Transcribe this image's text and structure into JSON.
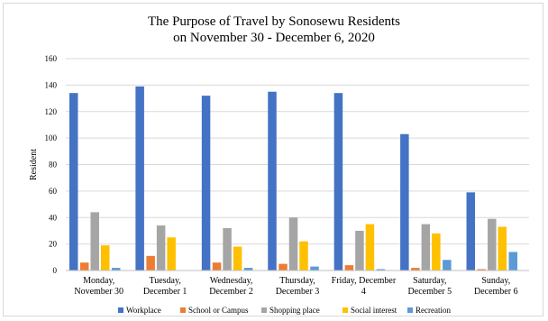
{
  "chart_data": {
    "type": "bar",
    "title": "The Purpose of Travel by Sonosewu Residents",
    "subtitle": "on  November 30 - December 6, 2020",
    "xlabel": "",
    "ylabel": "Resident",
    "ylim": [
      0,
      160
    ],
    "yticks": [
      0,
      20,
      40,
      60,
      80,
      100,
      120,
      140,
      160
    ],
    "grid": true,
    "legend_position": "bottom",
    "categories": [
      [
        "Monday,",
        "November 30"
      ],
      [
        "Tuesday,",
        "December 1"
      ],
      [
        "Wednesday,",
        "December 2"
      ],
      [
        "Thursday,",
        "December 3"
      ],
      [
        "Friday, December",
        "4"
      ],
      [
        "Saturday,",
        "December 5"
      ],
      [
        "Sunday,",
        "December 6"
      ]
    ],
    "series": [
      {
        "name": "Workplace",
        "color": "#4472c4",
        "values": [
          134,
          139,
          132,
          135,
          134,
          103,
          59
        ]
      },
      {
        "name": "School or Campus",
        "color": "#ed7d31",
        "values": [
          6,
          11,
          6,
          5,
          4,
          2,
          1
        ]
      },
      {
        "name": "Shopping place",
        "color": "#a5a5a5",
        "values": [
          44,
          34,
          32,
          40,
          30,
          35,
          39
        ]
      },
      {
        "name": "Social interest",
        "color": "#ffc000",
        "values": [
          19,
          25,
          18,
          22,
          35,
          28,
          33
        ]
      },
      {
        "name": "Recreation",
        "color": "#5b9bd5",
        "values": [
          2,
          0,
          2,
          3,
          1,
          8,
          14
        ]
      }
    ]
  }
}
